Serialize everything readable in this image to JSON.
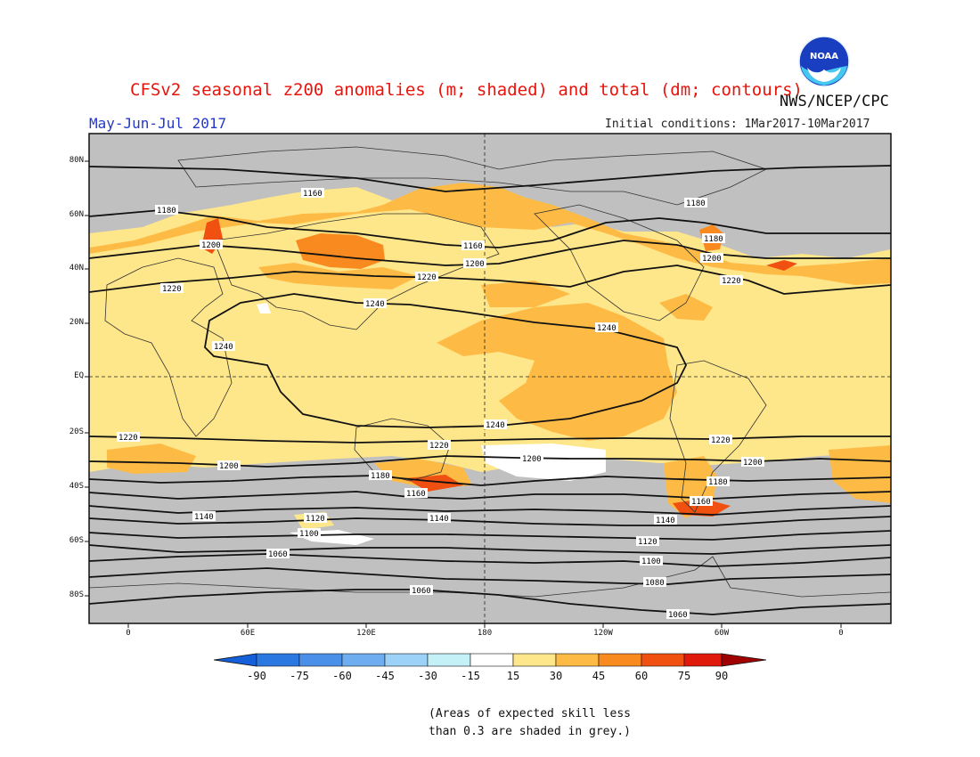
{
  "header": {
    "title": "CFSv2 seasonal z200 anomalies (m; shaded) and total (dm; contours)",
    "agency": "NWS/NCEP/CPC",
    "season": "May-Jun-Jul 2017",
    "initial_conditions": "Initial conditions: 1Mar2017-10Mar2017",
    "logo_text": "NOAA"
  },
  "map": {
    "lat_ticks": [
      "80N",
      "60N",
      "40N",
      "20N",
      "EQ",
      "20S",
      "40S",
      "60S",
      "80S"
    ],
    "lon_ticks": [
      "0",
      "60E",
      "120E",
      "180",
      "120W",
      "60W",
      "0"
    ],
    "contour_labels": [
      "1160",
      "1180",
      "1200",
      "1220",
      "1240",
      "1140",
      "1120",
      "1100",
      "1080",
      "1060"
    ]
  },
  "colorbar": {
    "labels": [
      "-90",
      "-75",
      "-60",
      "-45",
      "-30",
      "-15",
      "15",
      "30",
      "45",
      "60",
      "75",
      "90"
    ],
    "colors": [
      "#1560d8",
      "#2a78e0",
      "#4a90e8",
      "#6eaef0",
      "#9cd2f8",
      "#c4f0f8",
      "#ffffff",
      "#fee68a",
      "#fdbb45",
      "#f88a20",
      "#f05010",
      "#e01a0a",
      "#c00a0a",
      "#a00000"
    ]
  },
  "note": {
    "line1": "(Areas of expected skill less",
    "line2": "than 0.3 are shaded in grey.)"
  }
}
